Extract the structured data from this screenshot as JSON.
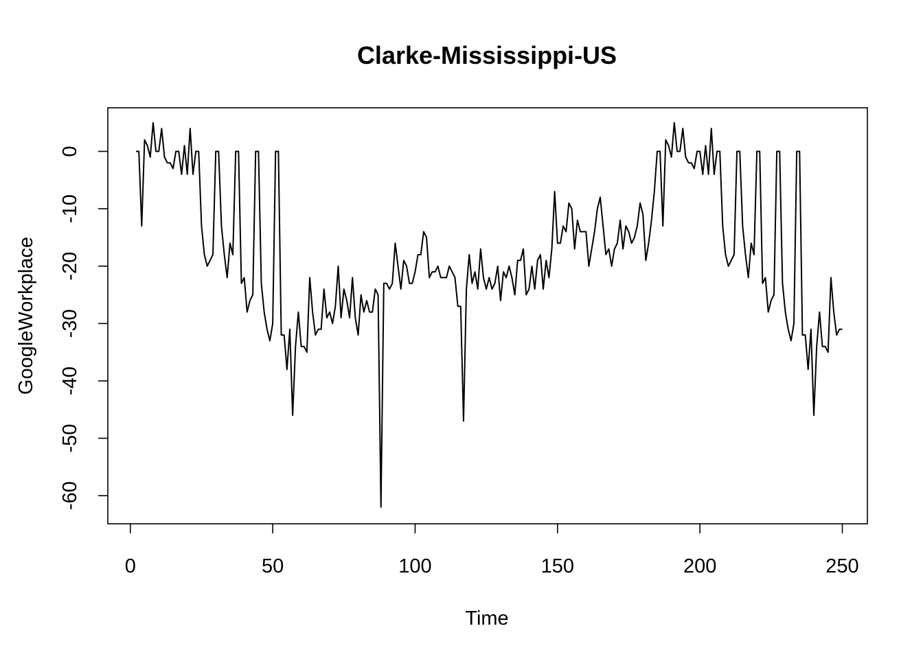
{
  "chart_data": {
    "type": "line",
    "title": "Clarke-Mississippi-US",
    "xlabel": "Time",
    "ylabel": "GoogleWorkplace",
    "xlim": [
      -7.9,
      258.8
    ],
    "ylim": [
      -64.9,
      7.6
    ],
    "x_ticks": [
      0,
      50,
      100,
      150,
      200,
      250
    ],
    "y_ticks": [
      0,
      -10,
      -20,
      -30,
      -40,
      -50,
      -60
    ],
    "grid": false,
    "legend": "none",
    "line_color": "#000000",
    "x_start": 2,
    "x_step": 1,
    "values": [
      0,
      0,
      -13,
      2,
      1,
      -1,
      5,
      0,
      0,
      4,
      -1,
      -2,
      -2,
      -3,
      0,
      0,
      -4,
      1,
      -4,
      4,
      -4,
      0,
      0,
      -13,
      -18,
      -20,
      -19,
      -18,
      0,
      0,
      -13,
      -18,
      -22,
      -16,
      -18,
      0,
      0,
      -23,
      -22,
      -28,
      -26,
      -25,
      0,
      0,
      -23,
      -28,
      -31,
      -33,
      -30,
      0,
      0,
      -32,
      -32,
      -38,
      -31,
      -46,
      -34,
      -28,
      -34,
      -34,
      -35,
      -22,
      -28,
      -32,
      -31,
      -31,
      -24,
      -29,
      -28,
      -30,
      -27,
      -20,
      -29,
      -24,
      -26,
      -29,
      -22,
      -29,
      -32,
      -25,
      -28,
      -26,
      -28,
      -28,
      -24,
      -25,
      -62,
      -23,
      -23,
      -24,
      -23,
      -16,
      -20,
      -24,
      -19,
      -20,
      -23,
      -23,
      -21,
      -18,
      -18,
      -14,
      -15,
      -22,
      -21,
      -21,
      -20,
      -22,
      -22,
      -22,
      -20,
      -21,
      -22,
      -27,
      -27,
      -47,
      -24,
      -18,
      -23,
      -21,
      -24,
      -17,
      -22,
      -24,
      -22,
      -24,
      -23,
      -20,
      -26,
      -21,
      -22,
      -20,
      -22,
      -25,
      -19,
      -19,
      -17,
      -25,
      -24,
      -20,
      -24,
      -19,
      -18,
      -24,
      -19,
      -22,
      -17,
      -7,
      -16,
      -16,
      -13,
      -14,
      -9,
      -10,
      -17,
      -12,
      -14,
      -14,
      -14,
      -20,
      -17,
      -14,
      -10,
      -8,
      -13,
      -18,
      -17,
      -20,
      -17,
      -16,
      -12,
      -17,
      -13,
      -14,
      -16,
      -15,
      -13,
      -9,
      -11,
      -19,
      -16,
      -12,
      -7,
      0,
      0,
      -13,
      2,
      1,
      -1,
      5,
      0,
      0,
      4,
      -1,
      -2,
      -2,
      -3,
      0,
      0,
      -4,
      1,
      -4,
      4,
      -4,
      0,
      0,
      -13,
      -18,
      -20,
      -19,
      -18,
      0,
      0,
      -13,
      -18,
      -22,
      -16,
      -18,
      0,
      0,
      -23,
      -22,
      -28,
      -26,
      -25,
      0,
      0,
      -23,
      -28,
      -31,
      -33,
      -30,
      0,
      0,
      -32,
      -32,
      -38,
      -31,
      -46,
      -34,
      -28,
      -34,
      -34,
      -35,
      -22,
      -28,
      -32,
      -31,
      -31
    ]
  }
}
